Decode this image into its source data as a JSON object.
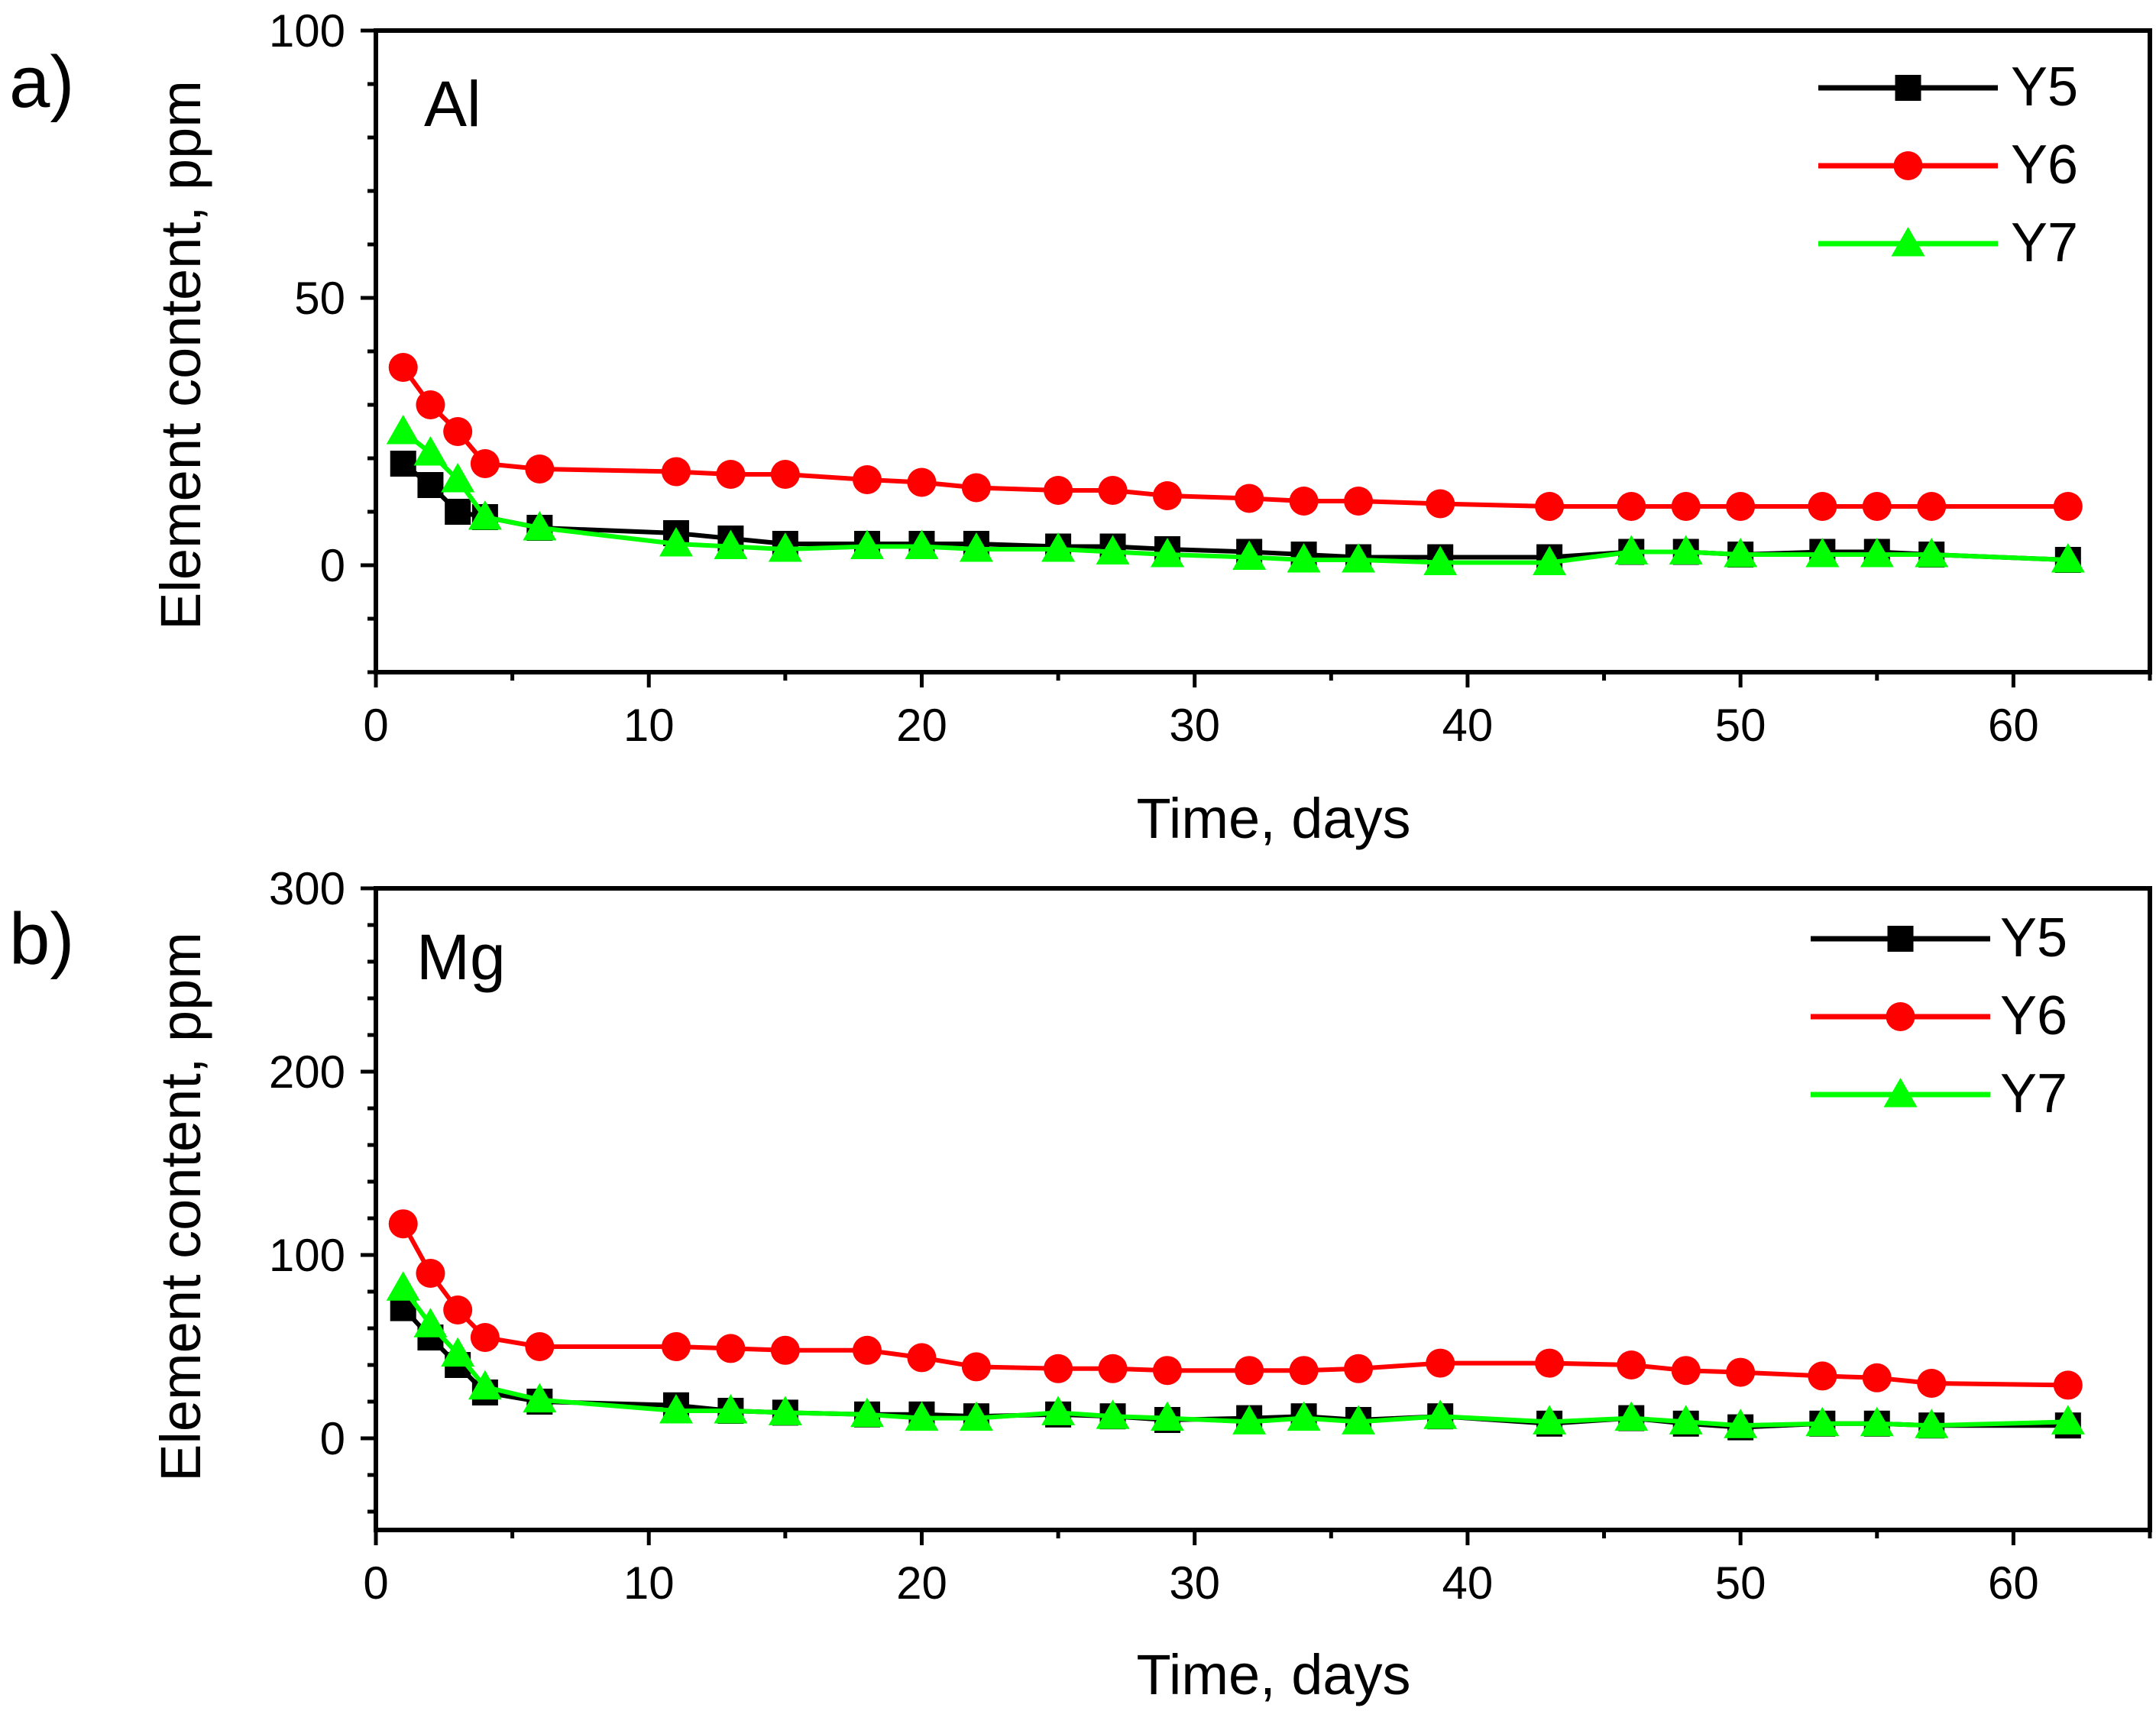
{
  "colors": {
    "Y5": "#000000",
    "Y6": "#ff0000",
    "Y7": "#00ff00"
  },
  "chart_data": [
    {
      "type": "line",
      "panel_label": "a)",
      "element": "Al",
      "xlabel": "Time, days",
      "ylabel": "Element content, ppm",
      "xlim": [
        0,
        65
      ],
      "ylim": [
        -20,
        100
      ],
      "xticks": [
        0,
        10,
        20,
        30,
        40,
        50,
        60
      ],
      "yticks": [
        0,
        50,
        100
      ],
      "legend_position": "top-right",
      "x": [
        1,
        2,
        3,
        4,
        6,
        11,
        13,
        15,
        18,
        20,
        22,
        25,
        27,
        29,
        32,
        34,
        36,
        39,
        43,
        46,
        48,
        50,
        53,
        55,
        57,
        62
      ],
      "series": [
        {
          "name": "Y5",
          "marker": "square",
          "color": "#000000",
          "values": [
            19,
            15,
            10,
            9,
            7,
            6,
            5,
            4,
            4,
            4,
            4,
            3.5,
            3.5,
            3,
            2.5,
            2,
            1.5,
            1.5,
            1.5,
            2.5,
            2.5,
            2,
            2.5,
            2.5,
            2,
            1
          ]
        },
        {
          "name": "Y6",
          "marker": "circle",
          "color": "#ff0000",
          "values": [
            37,
            30,
            25,
            19,
            18,
            17.5,
            17,
            17,
            16,
            15.5,
            14.5,
            14,
            14,
            13,
            12.5,
            12,
            12,
            11.5,
            11,
            11,
            11,
            11,
            11,
            11,
            11,
            11
          ]
        },
        {
          "name": "Y7",
          "marker": "triangle",
          "color": "#00ff00",
          "values": [
            25,
            21,
            16,
            9,
            7,
            4,
            3.5,
            3,
            3.5,
            3.5,
            3,
            3,
            2.5,
            2,
            1.5,
            1,
            1,
            0.5,
            0.5,
            2.5,
            2.5,
            2,
            2,
            2,
            2,
            1
          ]
        }
      ]
    },
    {
      "type": "line",
      "panel_label": "b)",
      "element": "Mg",
      "xlabel": "Time, days",
      "ylabel": "Element content, ppm",
      "xlim": [
        0,
        65
      ],
      "ylim": [
        -50,
        300
      ],
      "xticks": [
        0,
        10,
        20,
        30,
        40,
        50,
        60
      ],
      "yticks": [
        0,
        100,
        200,
        300
      ],
      "legend_position": "top-right",
      "x": [
        1,
        2,
        3,
        4,
        6,
        11,
        13,
        15,
        18,
        20,
        22,
        25,
        27,
        29,
        32,
        34,
        36,
        39,
        43,
        46,
        48,
        50,
        53,
        55,
        57,
        62
      ],
      "series": [
        {
          "name": "Y5",
          "marker": "square",
          "color": "#000000",
          "values": [
            71,
            55,
            40,
            25,
            20,
            18,
            15,
            14,
            13,
            13,
            12,
            13,
            12,
            10,
            11,
            12,
            10,
            12,
            8,
            11,
            8,
            6,
            8,
            8,
            7,
            7
          ]
        },
        {
          "name": "Y6",
          "marker": "circle",
          "color": "#ff0000",
          "values": [
            117,
            90,
            70,
            55,
            50,
            50,
            49,
            48,
            48,
            44,
            39,
            38,
            38,
            37,
            37,
            37,
            38,
            41,
            41,
            40,
            37,
            36,
            34,
            33,
            30,
            29
          ]
        },
        {
          "name": "Y7",
          "marker": "triangle",
          "color": "#00ff00",
          "values": [
            82,
            62,
            46,
            28,
            21,
            15,
            15,
            14,
            13,
            11,
            11,
            14,
            12,
            11,
            9,
            11,
            9,
            12,
            9,
            11,
            9,
            7,
            8,
            8,
            7,
            9
          ]
        }
      ]
    }
  ]
}
